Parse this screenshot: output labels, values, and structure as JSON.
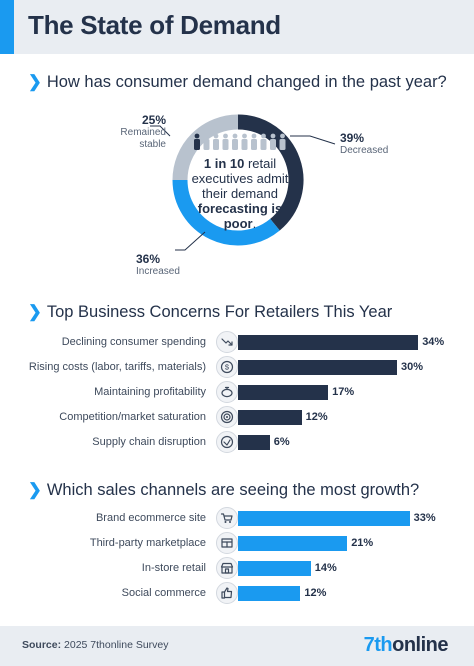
{
  "header": {
    "title": "The State of Demand"
  },
  "donut_section": {
    "heading": "How has consumer demand changed in the past year?",
    "center_lead": "1 in 10",
    "center_mid": "retail executives admit their demand",
    "center_strong": "forecasting is poor",
    "center_tail": "."
  },
  "concerns_section": {
    "heading": "Top Business Concerns For Retailers This Year"
  },
  "channels_section": {
    "heading": "Which sales channels are seeing the most growth?"
  },
  "chart_data": [
    {
      "type": "pie",
      "variant": "donut",
      "labels": [
        "Decreased",
        "Increased",
        "Remained stable"
      ],
      "values": [
        39,
        36,
        25
      ],
      "value_labels": [
        "39%",
        "36%",
        "25%"
      ],
      "colors": [
        "#24324a",
        "#1a9af0",
        "#b8c2ce"
      ]
    },
    {
      "type": "bar",
      "orientation": "horizontal",
      "categories": [
        "Declining consumer spending",
        "Rising costs (labor, tariffs, materials)",
        "Maintaining profitability",
        "Competition/market saturation",
        "Supply chain disruption"
      ],
      "values": [
        34,
        30,
        17,
        12,
        6
      ],
      "value_labels": [
        "34%",
        "30%",
        "17%",
        "12%",
        "6%"
      ],
      "icons": [
        "trend-down-icon",
        "dollar-icon",
        "piggy-bank-icon",
        "target-icon",
        "supply-chain-icon"
      ],
      "color": "#24324a"
    },
    {
      "type": "bar",
      "orientation": "horizontal",
      "categories": [
        "Brand ecommerce site",
        "Third-party marketplace",
        "In-store retail",
        "Social commerce"
      ],
      "values": [
        33,
        21,
        14,
        12
      ],
      "value_labels": [
        "33%",
        "21%",
        "14%",
        "12%"
      ],
      "icons": [
        "cart-icon",
        "marketplace-icon",
        "storefront-icon",
        "thumbs-up-icon"
      ],
      "color": "#1a9af0"
    }
  ],
  "footer": {
    "source_label": "Source:",
    "source_text": "2025 7thonline Survey",
    "logo_prefix": "7th",
    "logo_suffix": "online"
  }
}
